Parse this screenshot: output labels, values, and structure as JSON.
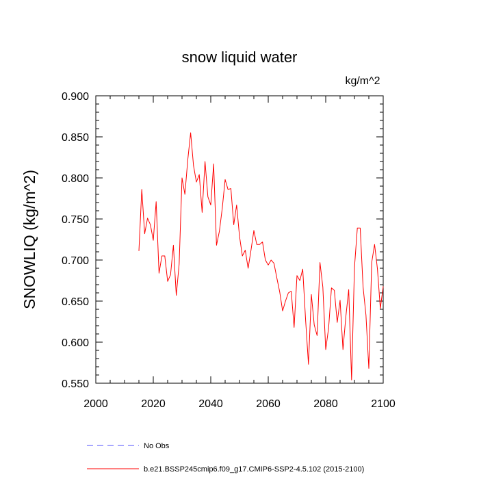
{
  "chart_data": {
    "type": "line",
    "title": "snow liquid water",
    "units": "kg/m^2",
    "xlabel": "",
    "ylabel": "SNOWLIQ  (kg/m^2)",
    "xlim": [
      2000,
      2100
    ],
    "ylim": [
      0.55,
      0.9
    ],
    "x_ticks": [
      2000,
      2020,
      2040,
      2060,
      2080,
      2100
    ],
    "x_tick_labels": [
      "2000",
      "2020",
      "2040",
      "2060",
      "2080",
      "2100"
    ],
    "y_ticks": [
      0.55,
      0.6,
      0.65,
      0.7,
      0.75,
      0.8,
      0.85,
      0.9
    ],
    "y_tick_labels": [
      "0.550",
      "0.600",
      "0.650",
      "0.700",
      "0.750",
      "0.800",
      "0.850",
      "0.900"
    ],
    "grid": false,
    "series": [
      {
        "name": "b.e21.BSSP245cmip6.f09_g17.CMIP6-SSP2-4.5.102 (2015-2100)",
        "color": "#ff0000",
        "dash": "solid",
        "x": [
          2015,
          2016,
          2017,
          2018,
          2019,
          2020,
          2021,
          2022,
          2023,
          2024,
          2025,
          2026,
          2027,
          2028,
          2029,
          2030,
          2031,
          2032,
          2033,
          2034,
          2035,
          2036,
          2037,
          2038,
          2039,
          2040,
          2041,
          2042,
          2043,
          2044,
          2045,
          2046,
          2047,
          2048,
          2049,
          2050,
          2051,
          2052,
          2053,
          2054,
          2055,
          2056,
          2057,
          2058,
          2059,
          2060,
          2061,
          2062,
          2063,
          2064,
          2065,
          2066,
          2067,
          2068,
          2069,
          2070,
          2071,
          2072,
          2073,
          2074,
          2075,
          2076,
          2077,
          2078,
          2079,
          2080,
          2081,
          2082,
          2083,
          2084,
          2085,
          2086,
          2087,
          2088,
          2089,
          2090,
          2091,
          2092,
          2093,
          2094,
          2095,
          2096,
          2097,
          2098,
          2099,
          2100
        ],
        "values": [
          0.711,
          0.786,
          0.732,
          0.751,
          0.743,
          0.724,
          0.771,
          0.684,
          0.705,
          0.705,
          0.674,
          0.682,
          0.718,
          0.657,
          0.695,
          0.8,
          0.78,
          0.822,
          0.855,
          0.815,
          0.795,
          0.804,
          0.758,
          0.82,
          0.777,
          0.767,
          0.817,
          0.718,
          0.735,
          0.763,
          0.798,
          0.786,
          0.787,
          0.743,
          0.767,
          0.729,
          0.705,
          0.712,
          0.69,
          0.712,
          0.736,
          0.719,
          0.719,
          0.722,
          0.7,
          0.694,
          0.7,
          0.696,
          0.678,
          0.661,
          0.638,
          0.65,
          0.66,
          0.662,
          0.618,
          0.681,
          0.675,
          0.689,
          0.627,
          0.573,
          0.658,
          0.621,
          0.608,
          0.697,
          0.667,
          0.591,
          0.617,
          0.666,
          0.663,
          0.624,
          0.651,
          0.591,
          0.631,
          0.664,
          0.554,
          0.691,
          0.739,
          0.739,
          0.667,
          0.633,
          0.568,
          0.697,
          0.719,
          0.689,
          0.641,
          0.668
        ]
      }
    ],
    "legend": [
      {
        "label": "No Obs",
        "color": "#4f4fff",
        "dash": "dashed"
      },
      {
        "label": "b.e21.BSSP245cmip6.f09_g17.CMIP6-SSP2-4.5.102 (2015-2100)",
        "color": "#ff0000",
        "dash": "solid"
      }
    ],
    "legend_position": "bottom-left"
  }
}
